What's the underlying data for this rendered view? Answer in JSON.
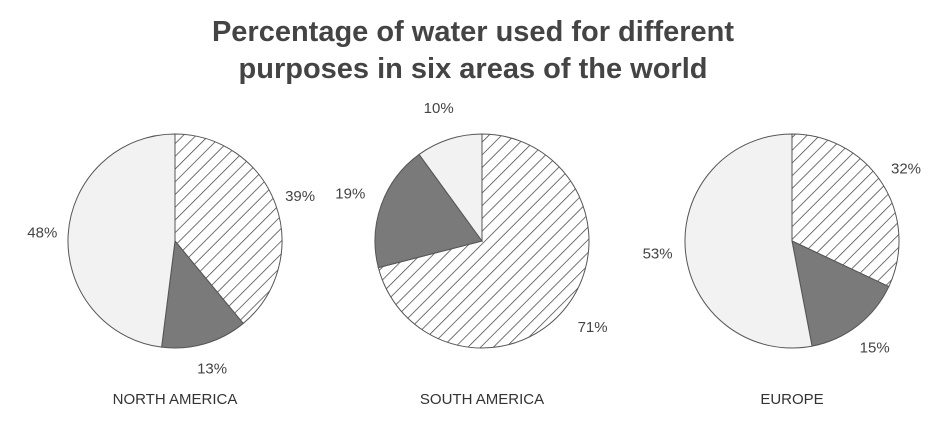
{
  "title_line1": "Percentage of water used for different",
  "title_line2": "purposes in six areas of the world",
  "colors": {
    "hatched": "#ffffff",
    "hatch_stroke": "#3a3a3a",
    "dark": "#7a7a7a",
    "light": "#f2f2f2",
    "outline": "#555555"
  },
  "chart_data": [
    {
      "type": "pie",
      "title": "NORTH AMERICA",
      "slices": [
        {
          "value": 39,
          "label": "39%",
          "fill": "hatched"
        },
        {
          "value": 13,
          "label": "13%",
          "fill": "dark"
        },
        {
          "value": 48,
          "label": "48%",
          "fill": "light"
        }
      ]
    },
    {
      "type": "pie",
      "title": "SOUTH AMERICA",
      "slices": [
        {
          "value": 71,
          "label": "71%",
          "fill": "hatched"
        },
        {
          "value": 19,
          "label": "19%",
          "fill": "dark"
        },
        {
          "value": 10,
          "label": "10%",
          "fill": "light"
        }
      ]
    },
    {
      "type": "pie",
      "title": "EUROPE",
      "slices": [
        {
          "value": 32,
          "label": "32%",
          "fill": "hatched"
        },
        {
          "value": 15,
          "label": "15%",
          "fill": "dark"
        },
        {
          "value": 53,
          "label": "53%",
          "fill": "light"
        }
      ]
    }
  ]
}
